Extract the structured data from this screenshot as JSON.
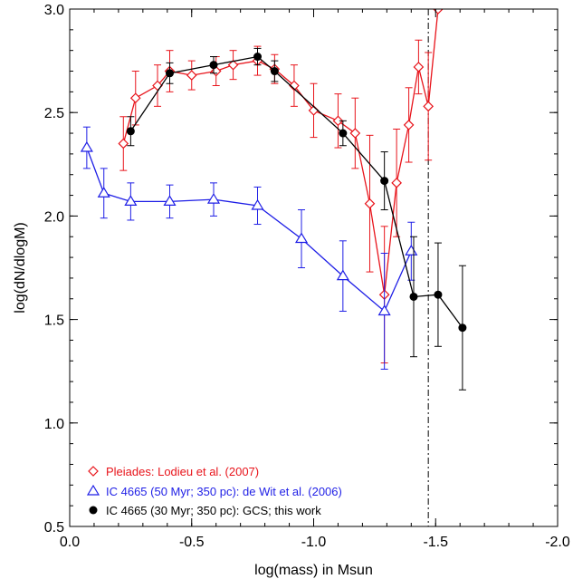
{
  "chart_data": {
    "type": "line",
    "title": "",
    "xlabel": "log(mass) in Msun",
    "ylabel": "log(dN/dlogM)",
    "xlim": [
      0.0,
      -2.0
    ],
    "ylim": [
      0.5,
      3.0
    ],
    "xticks": [
      0.0,
      -0.5,
      -1.0,
      -1.5,
      -2.0
    ],
    "xtick_labels": [
      "0.0",
      "-0.5",
      "-1.0",
      "-1.5",
      "-2.0"
    ],
    "yticks": [
      0.5,
      1.0,
      1.5,
      2.0,
      2.5,
      3.0
    ],
    "ytick_labels": [
      "0.5",
      "1.0",
      "1.5",
      "2.0",
      "2.5",
      "3.0"
    ],
    "grid": false,
    "legend_position": "bottom-left",
    "vline": {
      "x": -1.47,
      "style": "dash-dot",
      "color": "#000000"
    },
    "series": [
      {
        "name": "Pleiades: Lodieu et al. (2007)",
        "color": "#e8141b",
        "marker": "diamond-open",
        "x": [
          -0.22,
          -0.27,
          -0.36,
          -0.41,
          -0.5,
          -0.6,
          -0.67,
          -0.77,
          -0.84,
          -0.92,
          -1.0,
          -1.1,
          -1.17,
          -1.23,
          -1.29,
          -1.34,
          -1.39,
          -1.43,
          -1.47,
          -1.51
        ],
        "y": [
          2.35,
          2.57,
          2.63,
          2.7,
          2.68,
          2.7,
          2.73,
          2.75,
          2.71,
          2.63,
          2.51,
          2.46,
          2.4,
          2.06,
          1.62,
          2.16,
          2.44,
          2.72,
          2.53,
          3.0
        ],
        "err": [
          0.13,
          0.13,
          0.1,
          0.1,
          0.07,
          0.07,
          0.07,
          0.07,
          0.07,
          0.1,
          0.13,
          0.13,
          0.17,
          0.33,
          0.33,
          0.26,
          0.18,
          0.13,
          0.26,
          null
        ]
      },
      {
        "name": "IC 4665 (50 Myr; 350 pc): de Wit et al. (2006)",
        "color": "#1e1ee6",
        "marker": "triangle-open",
        "x": [
          -0.07,
          -0.14,
          -0.25,
          -0.41,
          -0.59,
          -0.77,
          -0.95,
          -1.12,
          -1.29,
          -1.4
        ],
        "y": [
          2.33,
          2.11,
          2.07,
          2.07,
          2.08,
          2.05,
          1.89,
          1.71,
          1.54,
          1.83
        ],
        "err": [
          0.1,
          0.12,
          0.09,
          0.08,
          0.08,
          0.09,
          0.14,
          0.17,
          0.28,
          0.14
        ]
      },
      {
        "name": "IC 4665 (30 Myr; 350 pc): GCS; this work",
        "color": "#000000",
        "marker": "circle-filled",
        "x": [
          -0.25,
          -0.41,
          -0.59,
          -0.77,
          -0.84,
          -1.12,
          -1.29,
          -1.41,
          -1.51,
          -1.61
        ],
        "y": [
          2.41,
          2.69,
          2.73,
          2.77,
          2.7,
          2.4,
          2.17,
          1.61,
          1.62,
          1.46
        ],
        "err": [
          0.07,
          0.05,
          0.04,
          0.04,
          0.05,
          0.06,
          0.14,
          0.29,
          0.25,
          0.3
        ]
      }
    ]
  }
}
